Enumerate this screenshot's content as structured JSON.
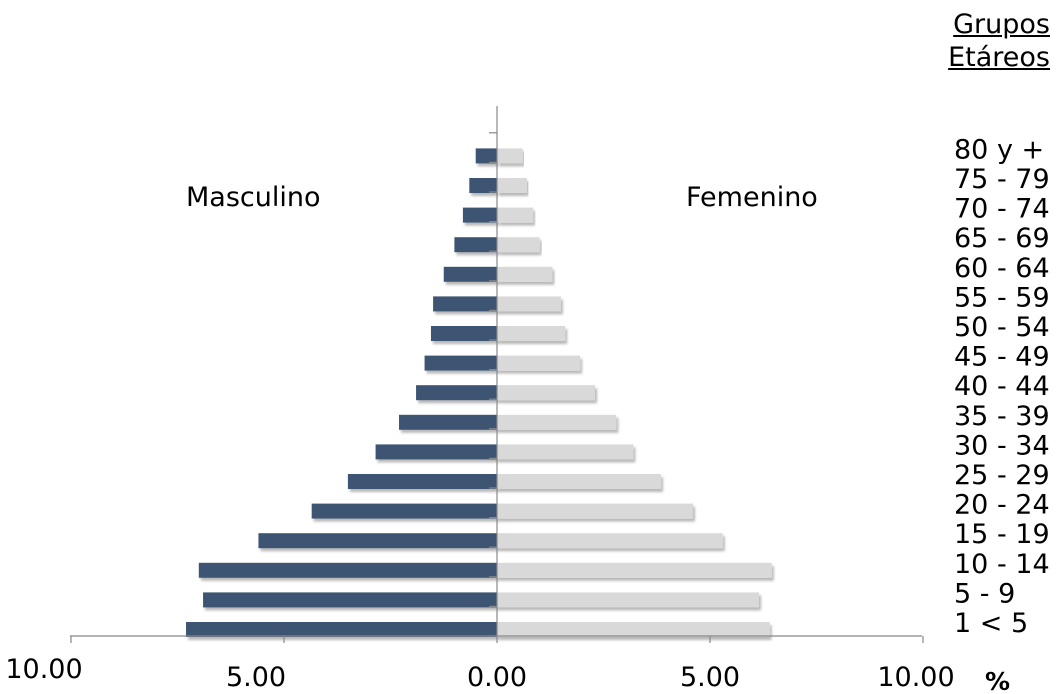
{
  "chart_data": {
    "type": "bar",
    "orientation": "horizontal",
    "subtype": "population-pyramid",
    "legend_title": [
      "Grupos",
      "Etáreos"
    ],
    "left_label": "Masculino",
    "right_label": "Femenino",
    "unit_label": "%",
    "categories": [
      "1 < 5",
      "5 - 9",
      "10 - 14",
      "15 - 19",
      "20 - 24",
      "25 - 29",
      "30 - 34",
      "35 - 39",
      "40 - 44",
      "45 - 49",
      "50 - 54",
      "55 - 59",
      "60 - 64",
      "65 - 69",
      "70 - 74",
      "75 - 79",
      "80 y +"
    ],
    "x_tick_labels": [
      "10.00",
      "5.00",
      "0.00",
      "5.00",
      "10.00"
    ],
    "xlim": [
      -10,
      10
    ],
    "series": [
      {
        "name": "Masculino",
        "color": "#3d5573",
        "values": [
          7.3,
          6.9,
          7.0,
          5.6,
          4.35,
          3.5,
          2.85,
          2.3,
          1.9,
          1.7,
          1.55,
          1.5,
          1.25,
          1.0,
          0.8,
          0.65,
          0.5
        ]
      },
      {
        "name": "Femenino",
        "color": "#d9d9d9",
        "values": [
          6.4,
          6.15,
          6.45,
          5.3,
          4.6,
          3.85,
          3.2,
          2.8,
          2.3,
          1.95,
          1.6,
          1.5,
          1.3,
          1.0,
          0.85,
          0.7,
          0.6
        ]
      }
    ],
    "grid": false
  }
}
